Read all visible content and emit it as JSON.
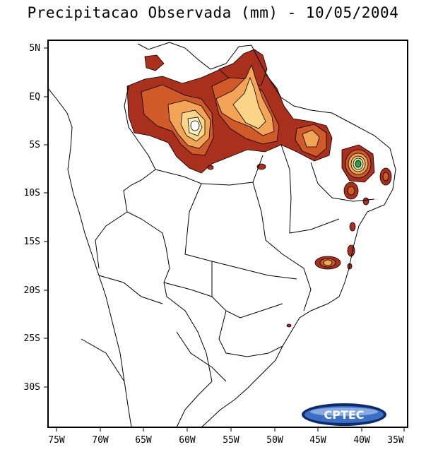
{
  "title": "Precipitacao Observada (mm) - 10/05/2004",
  "lat_labels": [
    "5N",
    "EQ",
    "5S",
    "10S",
    "15S",
    "20S",
    "25S",
    "30S"
  ],
  "lon_labels": [
    "75W",
    "70W",
    "65W",
    "60W",
    "55W",
    "50W",
    "45W",
    "40W",
    "35W"
  ],
  "logo_text": "CPTEC",
  "colors": {
    "level1": "#a8301c",
    "level2": "#d05a28",
    "level3": "#f4a456",
    "level4": "#fad588",
    "level5": "#f8f2c8",
    "peak": "#2f9c46",
    "outline": "#000000"
  }
}
